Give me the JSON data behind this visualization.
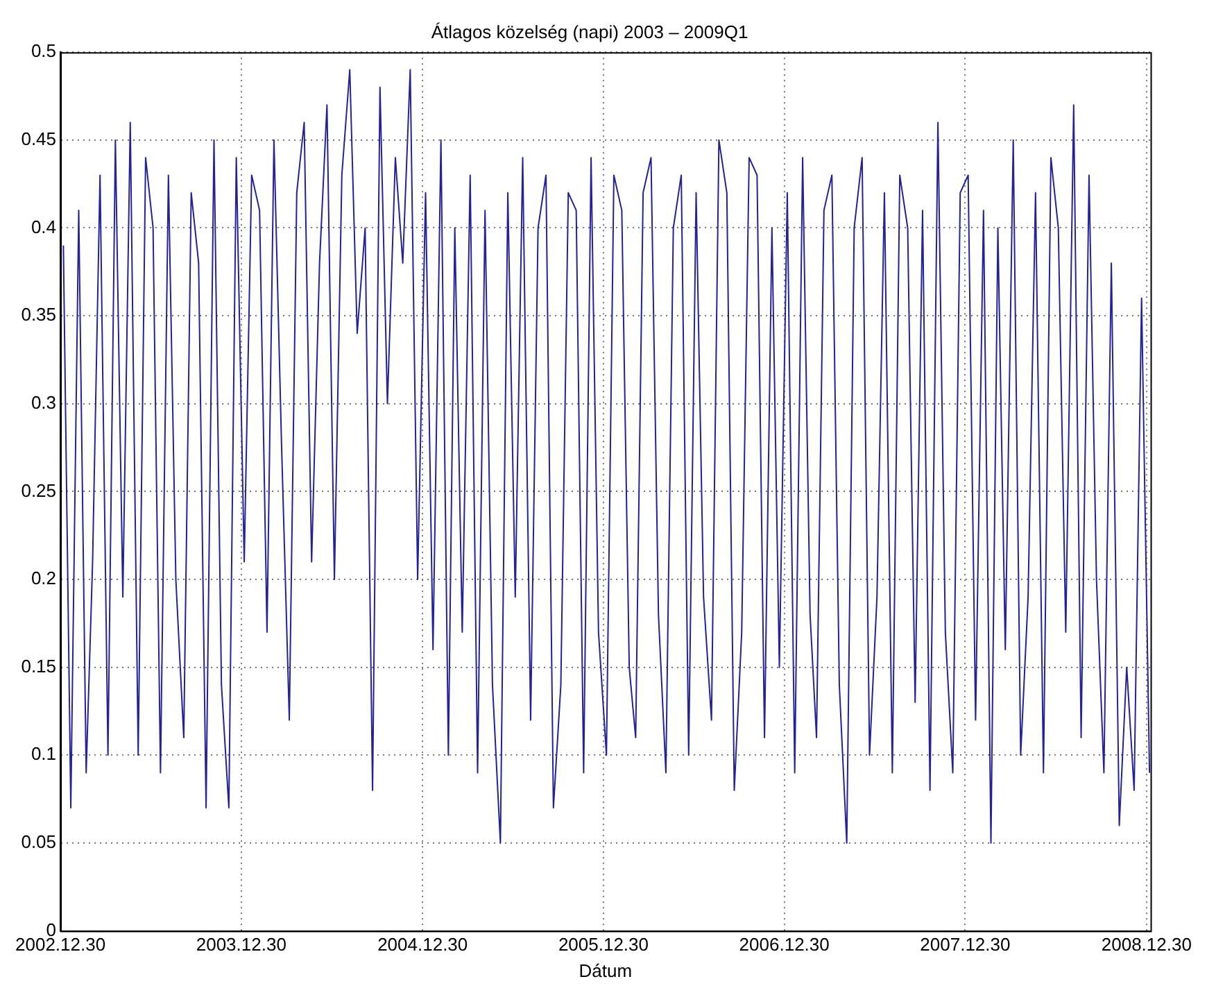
{
  "chart_data": {
    "type": "line",
    "title": "Átlagos közelség (napi) 2003 – 2009Q1",
    "xlabel": "Dátum",
    "x": [
      "2003-01-05",
      "2003-01-20",
      "2003-02-05",
      "2003-02-20",
      "2003-03-05",
      "2003-03-20",
      "2003-04-05",
      "2003-04-20",
      "2003-05-05",
      "2003-05-20",
      "2003-06-05",
      "2003-06-20",
      "2003-07-05",
      "2003-07-20",
      "2003-08-05",
      "2003-08-20",
      "2003-09-05",
      "2003-09-20",
      "2003-10-05",
      "2003-10-20",
      "2003-11-05",
      "2003-11-20",
      "2003-12-05",
      "2003-12-20",
      "2004-01-05",
      "2004-01-20",
      "2004-02-05",
      "2004-02-20",
      "2004-03-05",
      "2004-03-20",
      "2004-04-05",
      "2004-04-20",
      "2004-05-05",
      "2004-05-20",
      "2004-06-05",
      "2004-06-20",
      "2004-07-05",
      "2004-07-20",
      "2004-08-05",
      "2004-08-20",
      "2004-09-05",
      "2004-09-20",
      "2004-10-05",
      "2004-10-20",
      "2004-11-05",
      "2004-11-20",
      "2004-12-05",
      "2004-12-20",
      "2005-01-05",
      "2005-01-20",
      "2005-02-05",
      "2005-02-20",
      "2005-03-05",
      "2005-03-20",
      "2005-04-05",
      "2005-04-20",
      "2005-05-05",
      "2005-05-20",
      "2005-06-05",
      "2005-06-20",
      "2005-07-05",
      "2005-07-20",
      "2005-08-05",
      "2005-08-20",
      "2005-09-05",
      "2005-09-20",
      "2005-10-05",
      "2005-10-20",
      "2005-11-05",
      "2005-11-20",
      "2005-12-05",
      "2005-12-20",
      "2006-01-05",
      "2006-01-20",
      "2006-02-05",
      "2006-02-20",
      "2006-03-05",
      "2006-03-20",
      "2006-04-05",
      "2006-04-20",
      "2006-05-05",
      "2006-05-20",
      "2006-06-05",
      "2006-06-20",
      "2006-07-05",
      "2006-07-20",
      "2006-08-05",
      "2006-08-20",
      "2006-09-05",
      "2006-09-20",
      "2006-10-05",
      "2006-10-20",
      "2006-11-05",
      "2006-11-20",
      "2006-12-05",
      "2006-12-20",
      "2007-01-05",
      "2007-01-20",
      "2007-02-05",
      "2007-02-20",
      "2007-03-05",
      "2007-03-20",
      "2007-04-05",
      "2007-04-20",
      "2007-05-05",
      "2007-05-20",
      "2007-06-05",
      "2007-06-20",
      "2007-07-05",
      "2007-07-20",
      "2007-08-05",
      "2007-08-20",
      "2007-09-05",
      "2007-09-20",
      "2007-10-05",
      "2007-10-20",
      "2007-11-05",
      "2007-11-20",
      "2007-12-05",
      "2007-12-20",
      "2008-01-05",
      "2008-01-20",
      "2008-02-05",
      "2008-02-20",
      "2008-03-05",
      "2008-03-20",
      "2008-04-05",
      "2008-04-20",
      "2008-05-05",
      "2008-05-20",
      "2008-06-05",
      "2008-06-20",
      "2008-07-05",
      "2008-07-20",
      "2008-08-05",
      "2008-08-20",
      "2008-09-05",
      "2008-09-20",
      "2008-10-05",
      "2008-10-20",
      "2008-11-05",
      "2008-11-20",
      "2008-12-05",
      "2008-12-20",
      "2009-01-05"
    ],
    "series": [
      {
        "color": "#22229a",
        "values": [
          0.39,
          0.07,
          0.41,
          0.09,
          0.21,
          0.43,
          0.1,
          0.45,
          0.19,
          0.46,
          0.1,
          0.44,
          0.4,
          0.09,
          0.43,
          0.2,
          0.11,
          0.42,
          0.38,
          0.07,
          0.45,
          0.14,
          0.07,
          0.44,
          0.21,
          0.43,
          0.41,
          0.17,
          0.45,
          0.28,
          0.12,
          0.42,
          0.46,
          0.21,
          0.38,
          0.47,
          0.2,
          0.43,
          0.49,
          0.34,
          0.4,
          0.08,
          0.48,
          0.3,
          0.44,
          0.38,
          0.49,
          0.2,
          0.42,
          0.16,
          0.45,
          0.1,
          0.4,
          0.17,
          0.43,
          0.09,
          0.41,
          0.14,
          0.05,
          0.42,
          0.19,
          0.44,
          0.12,
          0.4,
          0.43,
          0.07,
          0.14,
          0.42,
          0.41,
          0.09,
          0.44,
          0.17,
          0.1,
          0.43,
          0.41,
          0.15,
          0.11,
          0.42,
          0.44,
          0.18,
          0.09,
          0.4,
          0.43,
          0.1,
          0.42,
          0.19,
          0.12,
          0.45,
          0.42,
          0.08,
          0.17,
          0.44,
          0.43,
          0.11,
          0.4,
          0.15,
          0.42,
          0.09,
          0.44,
          0.18,
          0.11,
          0.41,
          0.43,
          0.14,
          0.05,
          0.4,
          0.44,
          0.1,
          0.19,
          0.42,
          0.09,
          0.43,
          0.4,
          0.13,
          0.41,
          0.08,
          0.46,
          0.17,
          0.09,
          0.42,
          0.43,
          0.12,
          0.41,
          0.05,
          0.4,
          0.16,
          0.45,
          0.1,
          0.19,
          0.42,
          0.09,
          0.44,
          0.4,
          0.17,
          0.47,
          0.11,
          0.43,
          0.2,
          0.09,
          0.38,
          0.06,
          0.15,
          0.08,
          0.36,
          0.09
        ]
      }
    ],
    "xlim": [
      "2002-12-30",
      "2009-01-07"
    ],
    "xticks": [
      {
        "value": "2002-12-30",
        "label": "2002.12.30"
      },
      {
        "value": "2003-12-30",
        "label": "2003.12.30"
      },
      {
        "value": "2004-12-30",
        "label": "2004.12.30"
      },
      {
        "value": "2005-12-30",
        "label": "2005.12.30"
      },
      {
        "value": "2006-12-30",
        "label": "2006.12.30"
      },
      {
        "value": "2007-12-30",
        "label": "2007.12.30"
      },
      {
        "value": "2008-12-30",
        "label": "2008.12.30"
      }
    ],
    "ylim": [
      0,
      0.5
    ],
    "yticks": [
      0,
      0.05,
      0.1,
      0.15,
      0.2,
      0.25,
      0.3,
      0.35,
      0.4,
      0.45,
      0.5
    ],
    "grid": true,
    "legend": false,
    "marker": "none",
    "line_style": "solid"
  }
}
